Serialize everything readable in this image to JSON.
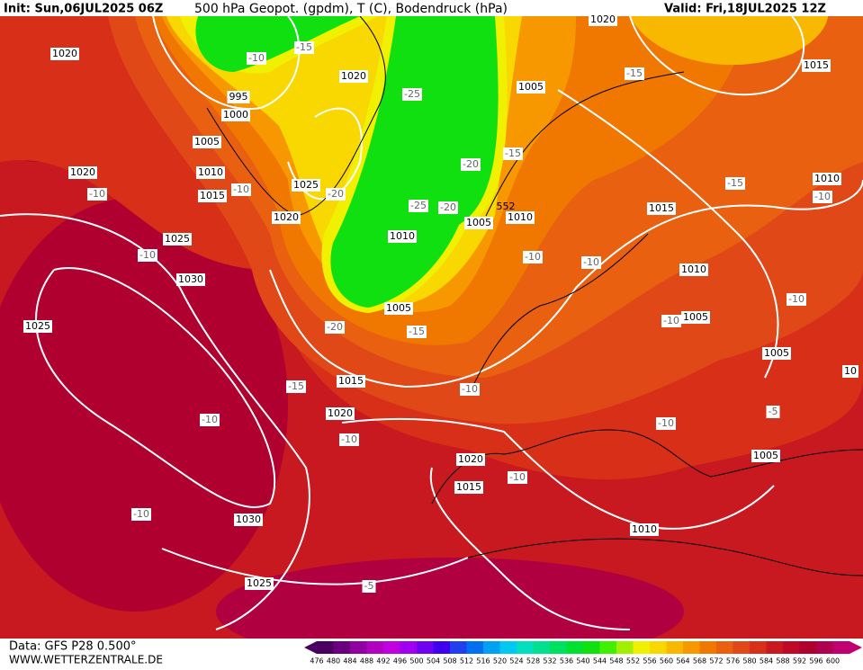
{
  "header": {
    "init": "Init: Sun,06JUL2025 06Z",
    "title": "500 hPa Geopot. (gpdm), T (C), Bodendruck (hPa)",
    "valid": "Valid: Fri,18JUL2025 12Z"
  },
  "footer": {
    "data": "Data: GFS P28 0.500°",
    "site": "WWW.WETTERZENTRALE.DE"
  },
  "pressure_labels": [
    "1020",
    "1020",
    "1015",
    "995",
    "1000",
    "1005",
    "1020",
    "1005",
    "1020",
    "1010",
    "1015",
    "1025",
    "1020",
    "1010",
    "1005",
    "1010",
    "1025",
    "1030",
    "1015",
    "1010",
    "1010",
    "1005",
    "1005",
    "10",
    "1005",
    "1025",
    "1015",
    "1020",
    "1020",
    "1015",
    "1005",
    "1030",
    "1010",
    "1025"
  ],
  "temperature_labels": [
    "-10",
    "-15",
    "-25",
    "-15",
    "-20",
    "-15",
    "-10",
    "-20",
    "-25",
    "-20",
    "-15",
    "-10",
    "-10",
    "-10",
    "-10",
    "-10",
    "-10",
    "-10",
    "-20",
    "-15",
    "-15",
    "-10",
    "-10",
    "-10",
    "-10",
    "-5",
    "-10",
    "-10",
    "-5"
  ],
  "height_labels": [
    "552"
  ],
  "colorbar": {
    "labels": [
      476,
      480,
      484,
      488,
      492,
      496,
      500,
      504,
      508,
      512,
      516,
      520,
      524,
      528,
      532,
      536,
      540,
      544,
      548,
      552,
      556,
      560,
      564,
      568,
      572,
      576,
      580,
      584,
      588,
      592,
      596,
      600
    ],
    "colors": [
      "#4a0060",
      "#6a0080",
      "#9000a0",
      "#b000c0",
      "#c000e0",
      "#a000f0",
      "#7000f0",
      "#4000f0",
      "#2040f0",
      "#0070f0",
      "#00a0f0",
      "#00c8f0",
      "#00e0c0",
      "#00e090",
      "#00e060",
      "#00e030",
      "#10e010",
      "#40f000",
      "#a0f000",
      "#f0f000",
      "#f8d800",
      "#f8b800",
      "#f89800",
      "#f07800",
      "#e86010",
      "#e04818",
      "#d83018",
      "#c81820",
      "#c00828",
      "#b00030",
      "#b00050",
      "#c00070"
    ]
  }
}
